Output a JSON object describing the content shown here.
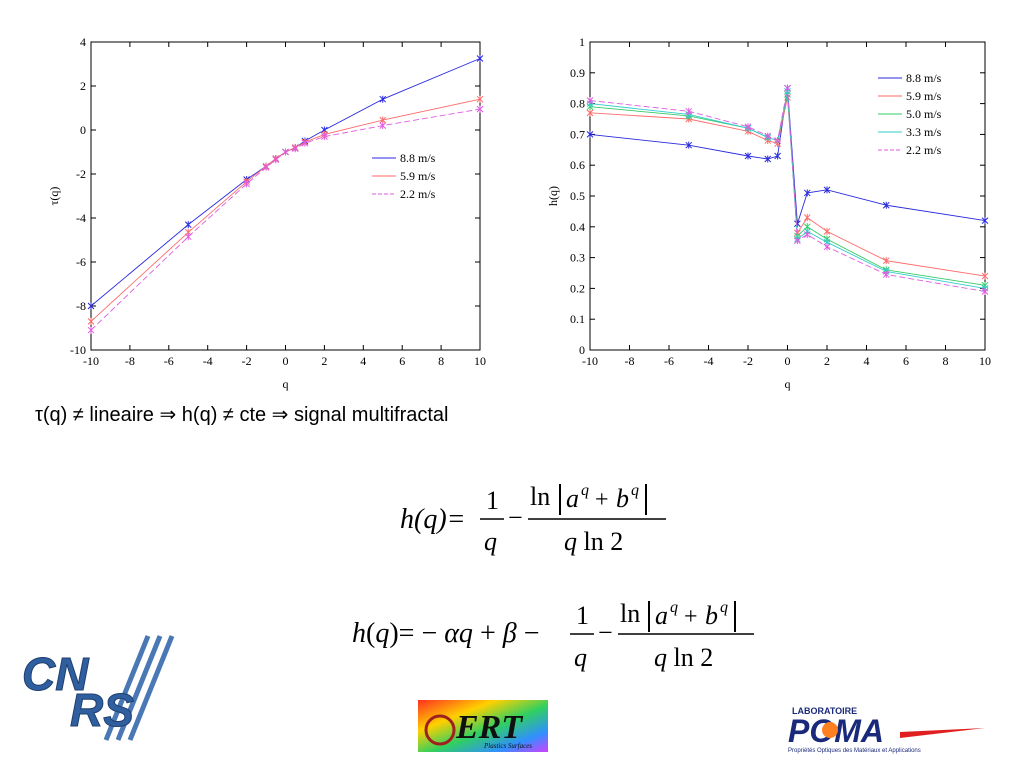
{
  "chart_data": [
    {
      "type": "line",
      "xlabel": "q",
      "ylabel": "τ(q)",
      "xlim": [
        -10,
        10
      ],
      "ylim": [
        -10,
        4
      ],
      "xticks": [
        -10,
        -8,
        -6,
        -4,
        -2,
        0,
        2,
        4,
        6,
        8,
        10
      ],
      "yticks": [
        -10,
        -8,
        -6,
        -4,
        -2,
        0,
        2,
        4
      ],
      "legend_position": "right",
      "series": [
        {
          "name": "8.8 m/s",
          "color": "#2a2ae0",
          "dash": "",
          "x": [
            -10,
            -5,
            -2,
            -1,
            -0.5,
            0,
            0.5,
            1,
            2,
            5,
            10
          ],
          "y": [
            -8.0,
            -4.3,
            -2.25,
            -1.65,
            -1.3,
            -1.0,
            -0.8,
            -0.5,
            0.0,
            1.4,
            3.25
          ]
        },
        {
          "name": "5.9 m/s",
          "color": "#ff6a6a",
          "dash": "",
          "x": [
            -10,
            -5,
            -2,
            -1,
            -0.5,
            0,
            0.5,
            1,
            2,
            5,
            10
          ],
          "y": [
            -8.7,
            -4.65,
            -2.35,
            -1.65,
            -1.3,
            -1.0,
            -0.8,
            -0.55,
            -0.2,
            0.45,
            1.4
          ]
        },
        {
          "name": "2.2 m/s",
          "color": "#e05ae0",
          "dash": "6,3",
          "x": [
            -10,
            -5,
            -2,
            -1,
            -0.5,
            0,
            0.5,
            1,
            2,
            5,
            10
          ],
          "y": [
            -9.1,
            -4.85,
            -2.45,
            -1.7,
            -1.35,
            -1.0,
            -0.85,
            -0.6,
            -0.3,
            0.2,
            0.95
          ]
        }
      ]
    },
    {
      "type": "line",
      "xlabel": "q",
      "ylabel": "h(q)",
      "xlim": [
        -10,
        10
      ],
      "ylim": [
        0,
        1
      ],
      "xticks": [
        -10,
        -8,
        -6,
        -4,
        -2,
        0,
        2,
        4,
        6,
        8,
        10
      ],
      "yticks": [
        0,
        0.1,
        0.2,
        0.3,
        0.4,
        0.5,
        0.6,
        0.7,
        0.8,
        0.9,
        1
      ],
      "legend_position": "top-right",
      "series": [
        {
          "name": "8.8 m/s",
          "color": "#2a2ae0",
          "dash": "",
          "x": [
            -10,
            -5,
            -2,
            -1,
            -0.5,
            0,
            0.5,
            1,
            2,
            5,
            10
          ],
          "y": [
            0.7,
            0.665,
            0.63,
            0.62,
            0.63,
            0.85,
            0.41,
            0.51,
            0.52,
            0.47,
            0.42
          ]
        },
        {
          "name": "5.9 m/s",
          "color": "#ff6a6a",
          "dash": "",
          "x": [
            -10,
            -5,
            -2,
            -1,
            -0.5,
            0,
            0.5,
            1,
            2,
            5,
            10
          ],
          "y": [
            0.77,
            0.75,
            0.71,
            0.68,
            0.67,
            0.82,
            0.38,
            0.43,
            0.385,
            0.29,
            0.24
          ]
        },
        {
          "name": "5.0 m/s",
          "color": "#33cc66",
          "dash": "",
          "x": [
            -10,
            -5,
            -2,
            -1,
            -0.5,
            0,
            0.5,
            1,
            2,
            5,
            10
          ],
          "y": [
            0.79,
            0.76,
            0.72,
            0.69,
            0.68,
            0.83,
            0.37,
            0.4,
            0.36,
            0.26,
            0.21
          ]
        },
        {
          "name": "3.3 m/s",
          "color": "#33cccc",
          "dash": "",
          "x": [
            -10,
            -5,
            -2,
            -1,
            -0.5,
            0,
            0.5,
            1,
            2,
            5,
            10
          ],
          "y": [
            0.8,
            0.765,
            0.72,
            0.69,
            0.68,
            0.84,
            0.36,
            0.385,
            0.35,
            0.255,
            0.2
          ]
        },
        {
          "name": "2.2 m/s",
          "color": "#e05ae0",
          "dash": "6,3",
          "x": [
            -10,
            -5,
            -2,
            -1,
            -0.5,
            0,
            0.5,
            1,
            2,
            5,
            10
          ],
          "y": [
            0.81,
            0.775,
            0.725,
            0.695,
            0.68,
            0.85,
            0.355,
            0.375,
            0.335,
            0.245,
            0.19
          ]
        }
      ]
    }
  ],
  "caption": "τ(q) ≠ lineaire ⇒ h(q) ≠ cte ⇒ signal multifractal",
  "formulas": {
    "f1": {
      "lhs": "h(q)=",
      "one": "1",
      "q": "q",
      "minus": "−",
      "num": "ln⌊a^q + b^q⌋",
      "den": "q ln2"
    },
    "f2": {
      "lhs": "h(q)= − αq + β − ",
      "one": "1",
      "q": "q",
      "minus": "−",
      "num": "ln⌊a^q + b^q⌋",
      "den": "q ln2"
    }
  },
  "logos": {
    "cnrs": "CNRS",
    "ert": "ERT",
    "ert_sub": "Plastics Surfaces",
    "poma_top": "LABORATOIRE",
    "poma": "POMA",
    "poma_sub": "Propriétés Optiques des Matériaux et Applications"
  }
}
